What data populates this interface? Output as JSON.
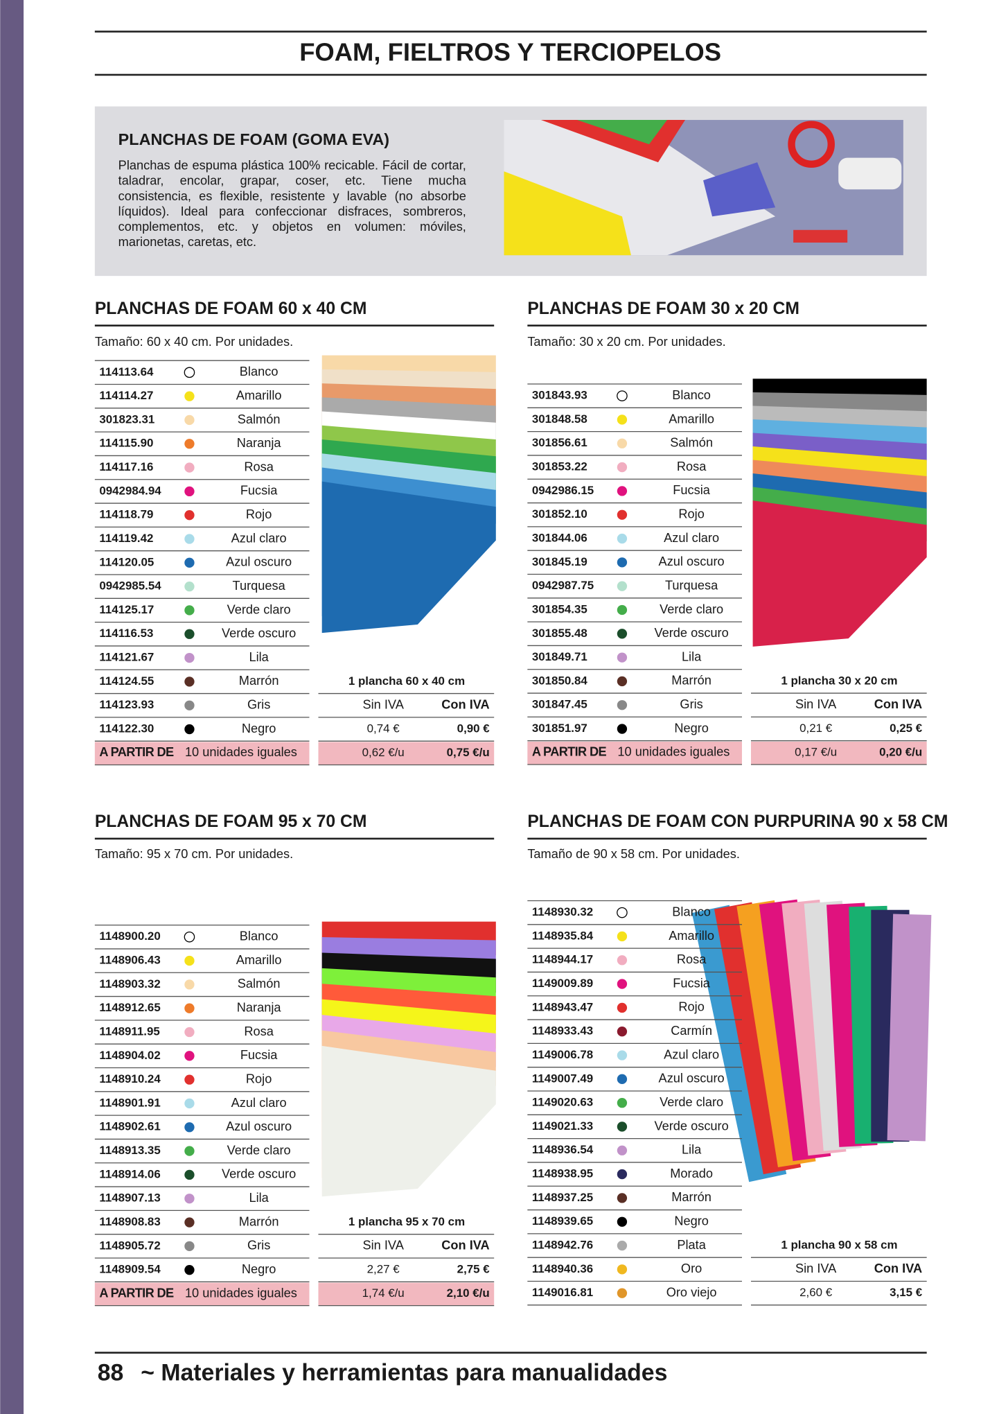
{
  "header": {
    "title": "FOAM, FIELTROS Y TERCIOPELOS"
  },
  "intro": {
    "title": "PLANCHAS DE FOAM (GOMA EVA)",
    "text": "Planchas de espuma plástica 100% recicable. Fácil de cortar, taladrar, encolar, grapar, coser, etc. Tiene mucha consistencia, es flexible, resistente y lavable (no absorbe líquidos). Ideal para confeccionar disfraces, sombreros, complementos, etc. y objetos en volumen: móviles, marionetas, caretas, etc."
  },
  "sections": [
    {
      "title": "PLANCHAS DE FOAM 60 x 40 CM",
      "size": "Tamaño: 60 x 40 cm. Por unidades.",
      "rows": [
        {
          "code": "114113.64",
          "name": "Blanco",
          "dot": "#ffffff"
        },
        {
          "code": "114114.27",
          "name": "Amarillo",
          "dot": "#f5e11a"
        },
        {
          "code": "301823.31",
          "name": "Salmón",
          "dot": "#f8d9a8"
        },
        {
          "code": "114115.90",
          "name": "Naranja",
          "dot": "#ee7b2a"
        },
        {
          "code": "114117.16",
          "name": "Rosa",
          "dot": "#f1adc0"
        },
        {
          "code": "0942984.94",
          "name": "Fucsia",
          "dot": "#e0127e"
        },
        {
          "code": "114118.79",
          "name": "Rojo",
          "dot": "#e1302e"
        },
        {
          "code": "114119.42",
          "name": "Azul claro",
          "dot": "#a9dbe9"
        },
        {
          "code": "114120.05",
          "name": "Azul oscuro",
          "dot": "#1e6bb0"
        },
        {
          "code": "0942985.54",
          "name": "Turquesa",
          "dot": "#b3e0cc"
        },
        {
          "code": "114125.17",
          "name": "Verde claro",
          "dot": "#44ad4a"
        },
        {
          "code": "114116.53",
          "name": "Verde oscuro",
          "dot": "#1b4e2b"
        },
        {
          "code": "114121.67",
          "name": "Lila",
          "dot": "#c192c9"
        },
        {
          "code": "114124.55",
          "name": "Marrón",
          "dot": "#5a2f25"
        },
        {
          "code": "114123.93",
          "name": "Gris",
          "dot": "#888888"
        },
        {
          "code": "114122.30",
          "name": "Negro",
          "dot": "#000000"
        }
      ],
      "price": {
        "heading": "1 plancha 60 x 40 cm",
        "sin_label": "Sin IVA",
        "con_label": "Con IVA",
        "sin": "0,74 €",
        "con": "0,90 €"
      },
      "partir": {
        "label": "A PARTIR DE",
        "qty": "10 unidades iguales",
        "sin": "0,62 €/u",
        "con": "0,75 €/u"
      }
    },
    {
      "title": "PLANCHAS DE FOAM 30 x 20 CM",
      "size": "Tamaño: 30 x 20 cm. Por unidades.",
      "rows": [
        {
          "code": "301843.93",
          "name": "Blanco",
          "dot": "#ffffff"
        },
        {
          "code": "301848.58",
          "name": "Amarillo",
          "dot": "#f5e11a"
        },
        {
          "code": "301856.61",
          "name": "Salmón",
          "dot": "#f8d9a8"
        },
        {
          "code": "301853.22",
          "name": "Rosa",
          "dot": "#f1adc0"
        },
        {
          "code": "0942986.15",
          "name": "Fucsia",
          "dot": "#e0127e"
        },
        {
          "code": "301852.10",
          "name": "Rojo",
          "dot": "#e1302e"
        },
        {
          "code": "301844.06",
          "name": "Azul claro",
          "dot": "#a9dbe9"
        },
        {
          "code": "301845.19",
          "name": "Azul oscuro",
          "dot": "#1e6bb0"
        },
        {
          "code": "0942987.75",
          "name": "Turquesa",
          "dot": "#b3e0cc"
        },
        {
          "code": "301854.35",
          "name": "Verde claro",
          "dot": "#44ad4a"
        },
        {
          "code": "301855.48",
          "name": "Verde oscuro",
          "dot": "#1b4e2b"
        },
        {
          "code": "301849.71",
          "name": "Lila",
          "dot": "#c192c9"
        },
        {
          "code": "301850.84",
          "name": "Marrón",
          "dot": "#5a2f25"
        },
        {
          "code": "301847.45",
          "name": "Gris",
          "dot": "#888888"
        },
        {
          "code": "301851.97",
          "name": "Negro",
          "dot": "#000000"
        }
      ],
      "price": {
        "heading": "1 plancha 30 x 20 cm",
        "sin_label": "Sin IVA",
        "con_label": "Con IVA",
        "sin": "0,21 €",
        "con": "0,25 €"
      },
      "partir": {
        "label": "A PARTIR DE",
        "qty": "10 unidades iguales",
        "sin": "0,17 €/u",
        "con": "0,20 €/u"
      }
    },
    {
      "title": "PLANCHAS DE FOAM 95 x 70 CM",
      "size": "Tamaño: 95 x 70 cm. Por unidades.",
      "rows": [
        {
          "code": "1148900.20",
          "name": "Blanco",
          "dot": "#ffffff"
        },
        {
          "code": "1148906.43",
          "name": "Amarillo",
          "dot": "#f5e11a"
        },
        {
          "code": "1148903.32",
          "name": "Salmón",
          "dot": "#f8d9a8"
        },
        {
          "code": "1148912.65",
          "name": "Naranja",
          "dot": "#ee7b2a"
        },
        {
          "code": "1148911.95",
          "name": "Rosa",
          "dot": "#f1adc0"
        },
        {
          "code": "1148904.02",
          "name": "Fucsia",
          "dot": "#e0127e"
        },
        {
          "code": "1148910.24",
          "name": "Rojo",
          "dot": "#e1302e"
        },
        {
          "code": "1148901.91",
          "name": "Azul claro",
          "dot": "#a9dbe9"
        },
        {
          "code": "1148902.61",
          "name": "Azul oscuro",
          "dot": "#1e6bb0"
        },
        {
          "code": "1148913.35",
          "name": "Verde claro",
          "dot": "#44ad4a"
        },
        {
          "code": "1148914.06",
          "name": "Verde oscuro",
          "dot": "#1b4e2b"
        },
        {
          "code": "1148907.13",
          "name": "Lila",
          "dot": "#c192c9"
        },
        {
          "code": "1148908.83",
          "name": "Marrón",
          "dot": "#5a2f25"
        },
        {
          "code": "1148905.72",
          "name": "Gris",
          "dot": "#888888"
        },
        {
          "code": "1148909.54",
          "name": "Negro",
          "dot": "#000000"
        }
      ],
      "price": {
        "heading": "1 plancha 95 x 70 cm",
        "sin_label": "Sin IVA",
        "con_label": "Con IVA",
        "sin": "2,27 €",
        "con": "2,75 €"
      },
      "partir": {
        "label": "A PARTIR DE",
        "qty": "10 unidades iguales",
        "sin": "1,74 €/u",
        "con": "2,10 €/u"
      }
    },
    {
      "title": "PLANCHAS DE FOAM CON PURPURINA 90 x 58 CM",
      "size": "Tamaño de 90 x 58 cm. Por unidades.",
      "rows": [
        {
          "code": "1148930.32",
          "name": "Blanco",
          "dot": "#ffffff"
        },
        {
          "code": "1148935.84",
          "name": "Amarillo",
          "dot": "#f5e11a"
        },
        {
          "code": "1148944.17",
          "name": "Rosa",
          "dot": "#f1adc0"
        },
        {
          "code": "1149009.89",
          "name": "Fucsia",
          "dot": "#e0127e"
        },
        {
          "code": "1148943.47",
          "name": "Rojo",
          "dot": "#e1302e"
        },
        {
          "code": "1148933.43",
          "name": "Carmín",
          "dot": "#8a1a2e"
        },
        {
          "code": "1149006.78",
          "name": "Azul claro",
          "dot": "#a9dbe9"
        },
        {
          "code": "1149007.49",
          "name": "Azul oscuro",
          "dot": "#1e6bb0"
        },
        {
          "code": "1149020.63",
          "name": "Verde claro",
          "dot": "#44ad4a"
        },
        {
          "code": "1149021.33",
          "name": "Verde oscuro",
          "dot": "#1b4e2b"
        },
        {
          "code": "1148936.54",
          "name": "Lila",
          "dot": "#c192c9"
        },
        {
          "code": "1148938.95",
          "name": "Morado",
          "dot": "#2a2a5e"
        },
        {
          "code": "1148937.25",
          "name": "Marrón",
          "dot": "#5a2f25"
        },
        {
          "code": "1148939.65",
          "name": "Negro",
          "dot": "#000000"
        },
        {
          "code": "1148942.76",
          "name": "Plata",
          "dot": "#aaaaaa"
        },
        {
          "code": "1148940.36",
          "name": "Oro",
          "dot": "#f0b820"
        },
        {
          "code": "1149016.81",
          "name": "Oro viejo",
          "dot": "#e0962a"
        }
      ],
      "price": {
        "heading": "1 plancha 90 x 58 cm",
        "sin_label": "Sin IVA",
        "con_label": "Con IVA",
        "sin": "2,60 €",
        "con": "3,15 €"
      }
    }
  ],
  "footer": {
    "page": "88",
    "text": "~ Materiales y herramientas para manualidades"
  }
}
